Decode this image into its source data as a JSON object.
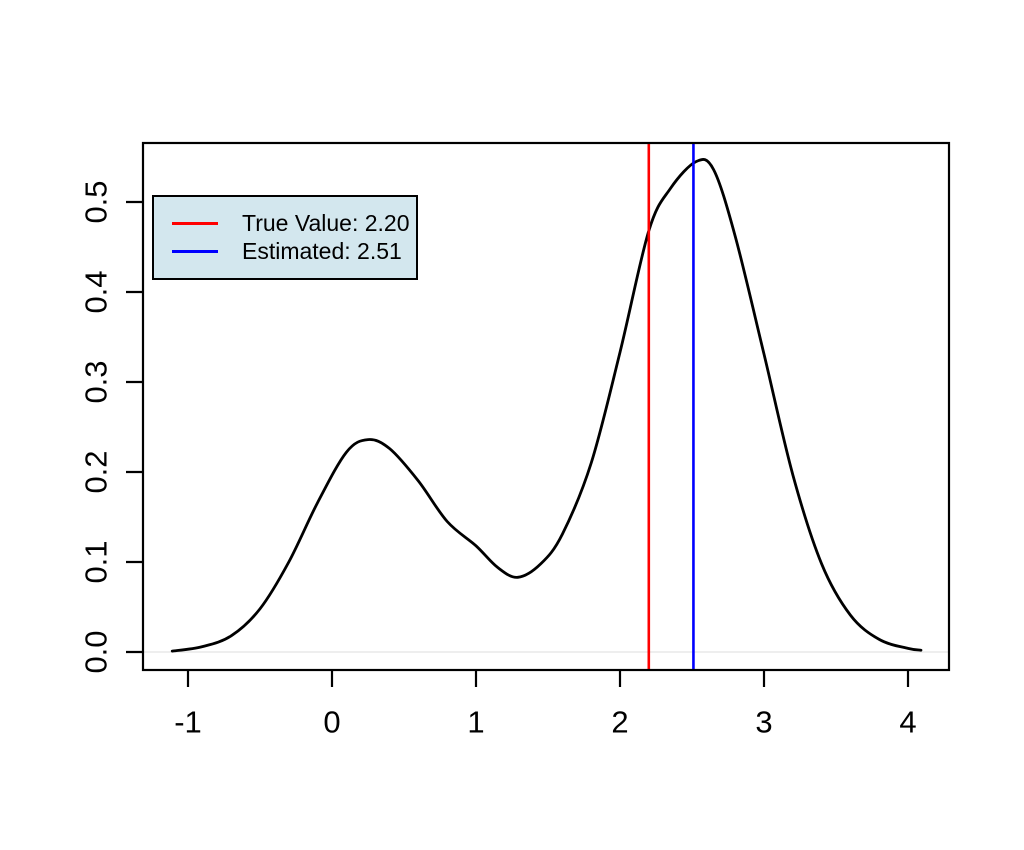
{
  "chart_data": {
    "type": "line",
    "description": "Bimodal kernel density curve with vertical reference lines for true and estimated values",
    "title": "",
    "xlabel": "",
    "ylabel": "",
    "grid": false,
    "xlim": [
      -1.3125,
      4.2847
    ],
    "ylim": [
      -0.02,
      0.5656
    ],
    "x_ticks": [
      -1,
      0,
      1,
      2,
      3,
      4
    ],
    "x_tick_labels": [
      "-1",
      "0",
      "1",
      "2",
      "3",
      "4"
    ],
    "y_ticks": [
      0.0,
      0.1,
      0.2,
      0.3,
      0.4,
      0.5
    ],
    "y_tick_labels": [
      "0.0",
      "0.1",
      "0.2",
      "0.3",
      "0.4",
      "0.5"
    ],
    "baseline": {
      "y": 0,
      "color": "#e8e8e8"
    },
    "curve": {
      "name": "density",
      "color": "#000000",
      "points": [
        [
          -1.11,
          0.001
        ],
        [
          -0.9,
          0.006
        ],
        [
          -0.7,
          0.018
        ],
        [
          -0.5,
          0.048
        ],
        [
          -0.3,
          0.1
        ],
        [
          -0.1,
          0.166
        ],
        [
          0.1,
          0.222
        ],
        [
          0.25,
          0.236
        ],
        [
          0.4,
          0.226
        ],
        [
          0.6,
          0.19
        ],
        [
          0.8,
          0.145
        ],
        [
          1.0,
          0.118
        ],
        [
          1.15,
          0.094
        ],
        [
          1.29,
          0.083
        ],
        [
          1.45,
          0.098
        ],
        [
          1.6,
          0.131
        ],
        [
          1.8,
          0.21
        ],
        [
          2.0,
          0.333
        ],
        [
          2.2,
          0.468
        ],
        [
          2.35,
          0.515
        ],
        [
          2.53,
          0.545
        ],
        [
          2.65,
          0.536
        ],
        [
          2.8,
          0.462
        ],
        [
          3.0,
          0.331
        ],
        [
          3.2,
          0.197
        ],
        [
          3.4,
          0.098
        ],
        [
          3.6,
          0.041
        ],
        [
          3.8,
          0.014
        ],
        [
          4.0,
          0.004
        ],
        [
          4.09,
          0.002
        ]
      ]
    },
    "vlines": [
      {
        "name": "true-value",
        "x": 2.2,
        "color": "#ff0000"
      },
      {
        "name": "estimated",
        "x": 2.51,
        "color": "#0000ff"
      }
    ],
    "legend": {
      "position": "top-left",
      "background": "#d3e7ee",
      "border_color": "#000000",
      "entries": [
        {
          "label": "True Value: 2.20",
          "color": "#ff0000"
        },
        {
          "label": "Estimated: 2.51",
          "color": "#0000ff"
        }
      ]
    }
  }
}
